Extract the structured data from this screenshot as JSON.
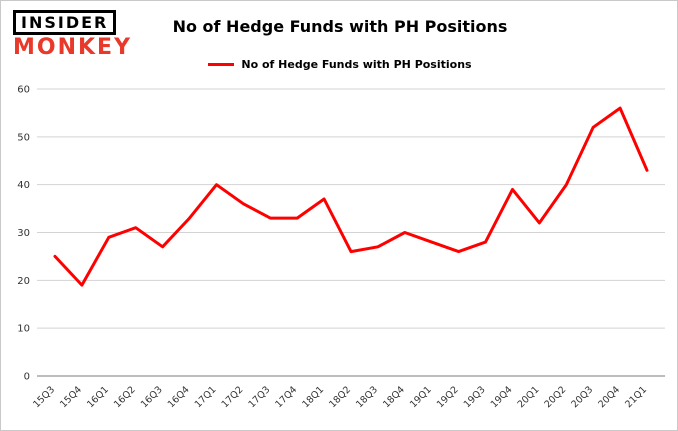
{
  "logo": {
    "line1": "INSIDER",
    "line2": "MONKEY",
    "monkey_color": "#e8392a"
  },
  "title": "No of Hedge Funds with PH Positions",
  "legend": {
    "label": "No of Hedge Funds with PH Positions",
    "color": "#ff0000"
  },
  "chart_data": {
    "type": "line",
    "title": "No of Hedge Funds with PH Positions",
    "series_name": "No of Hedge Funds with PH Positions",
    "categories": [
      "15Q3",
      "15Q4",
      "16Q1",
      "16Q2",
      "16Q3",
      "16Q4",
      "17Q1",
      "17Q2",
      "17Q3",
      "17Q4",
      "18Q1",
      "18Q2",
      "18Q3",
      "18Q4",
      "19Q1",
      "19Q2",
      "19Q3",
      "19Q4",
      "20Q1",
      "20Q2",
      "20Q3",
      "20Q4",
      "21Q1"
    ],
    "values": [
      25,
      19,
      29,
      31,
      27,
      33,
      40,
      36,
      33,
      33,
      37,
      26,
      27,
      30,
      28,
      26,
      28,
      39,
      32,
      40,
      52,
      56,
      43
    ],
    "xlabel": "",
    "ylabel": "",
    "ylim": [
      0,
      60
    ],
    "yticks": [
      0,
      10,
      20,
      30,
      40,
      50,
      60
    ],
    "line_color": "#ff0000",
    "grid": true,
    "grid_color": "#d3d3d3",
    "axis_color": "#7a7a7a",
    "tick_label_color": "#333333",
    "legend_position": "top"
  }
}
